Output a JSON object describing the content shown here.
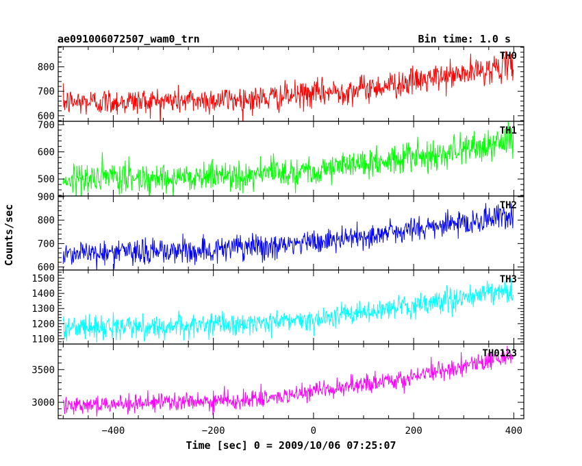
{
  "header": {
    "title": "ae091006072507_wam0_trn",
    "bin_time": "Bin time: 1.0 s"
  },
  "chart_data": {
    "type": "line",
    "xlabel": "Time [sec] 0 = 2009/10/06 07:25:07",
    "ylabel": "Counts/sec",
    "xlim": [
      -510,
      420
    ],
    "xticks": [
      -400,
      -200,
      0,
      200,
      400
    ],
    "x_range": [
      -500,
      399
    ],
    "bin_time_sec": 1.0,
    "grid": false,
    "panels": [
      {
        "name": "TH0",
        "color": "#ff0000",
        "ylim": [
          580,
          880
        ],
        "yticks": [
          600,
          700,
          800
        ],
        "trend_x": [
          -500,
          -300,
          -100,
          0,
          100,
          200,
          300,
          400
        ],
        "trend_y": [
          655,
          660,
          670,
          690,
          710,
          740,
          770,
          810
        ],
        "noise_sd": 28
      },
      {
        "name": "TH1",
        "color": "#00ff00",
        "ylim": [
          440,
          710
        ],
        "yticks": [
          500,
          600,
          700
        ],
        "trend_x": [
          -500,
          -300,
          -100,
          0,
          100,
          200,
          300,
          400
        ],
        "trend_y": [
          500,
          505,
          520,
          535,
          555,
          580,
          610,
          640
        ],
        "noise_sd": 28
      },
      {
        "name": "TH2",
        "color": "#0000ff",
        "ylim": [
          590,
          900
        ],
        "yticks": [
          600,
          700,
          800,
          900
        ],
        "trend_x": [
          -500,
          -300,
          -100,
          0,
          100,
          200,
          300,
          400
        ],
        "trend_y": [
          660,
          665,
          685,
          705,
          730,
          760,
          790,
          820
        ],
        "noise_sd": 28
      },
      {
        "name": "TH3",
        "color": "#00ffff",
        "ylim": [
          1070,
          1550
        ],
        "yticks": [
          1100,
          1200,
          1300,
          1400,
          1500
        ],
        "trend_x": [
          -500,
          -300,
          -100,
          0,
          100,
          200,
          300,
          400
        ],
        "trend_y": [
          1175,
          1180,
          1205,
          1235,
          1270,
          1320,
          1370,
          1420
        ],
        "noise_sd": 38
      },
      {
        "name": "TH0123",
        "color": "#ff00ff",
        "ylim": [
          2760,
          3880
        ],
        "yticks": [
          3000,
          3500
        ],
        "trend_x": [
          -500,
          -300,
          -100,
          0,
          100,
          200,
          300,
          400
        ],
        "trend_y": [
          2970,
          2990,
          3050,
          3150,
          3270,
          3390,
          3560,
          3720
        ],
        "noise_sd": 70
      }
    ]
  }
}
